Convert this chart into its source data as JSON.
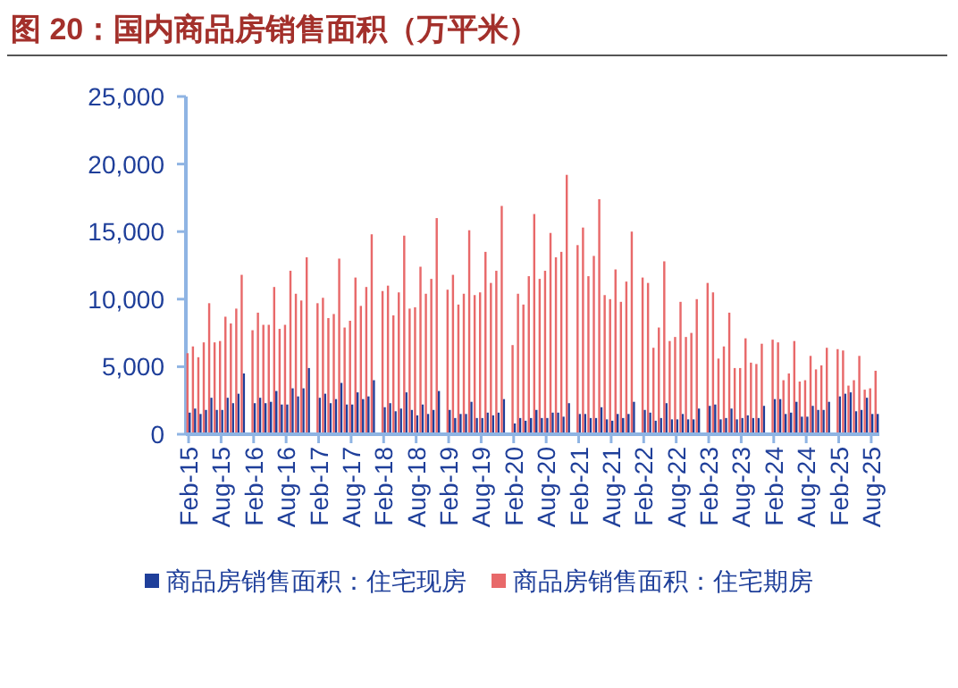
{
  "chart_data": {
    "type": "bar",
    "title": "图 20：国内商品房销售面积（万平米）",
    "categories": [
      "Feb-15",
      null,
      null,
      null,
      null,
      null,
      "Aug-15",
      null,
      null,
      null,
      null,
      null,
      "Feb-16",
      null,
      null,
      null,
      null,
      null,
      "Aug-16",
      null,
      null,
      null,
      null,
      null,
      "Feb-17",
      null,
      null,
      null,
      null,
      null,
      "Aug-17",
      null,
      null,
      null,
      null,
      null,
      "Feb-18",
      null,
      null,
      null,
      null,
      null,
      "Aug-18",
      null,
      null,
      null,
      null,
      null,
      "Feb-19",
      null,
      null,
      null,
      null,
      null,
      "Aug-19",
      null,
      null,
      null,
      null,
      null,
      "Feb-20",
      null,
      null,
      null,
      null,
      null,
      "Aug-20",
      null,
      null,
      null,
      null,
      null,
      "Feb-21",
      null,
      null,
      null,
      null,
      null,
      "Aug-21",
      null,
      null,
      null,
      null,
      null,
      "Feb-22",
      null,
      null,
      null,
      null,
      null,
      "Aug-22",
      null,
      null,
      null,
      null,
      null,
      "Feb-23",
      null,
      null,
      null,
      null,
      null,
      "Aug-23",
      null,
      null,
      null,
      null,
      null,
      "Feb-24",
      null,
      null,
      null,
      null,
      null,
      "Aug-24",
      null,
      null,
      null,
      null,
      null,
      "Feb-25",
      null,
      null,
      null,
      null,
      null,
      "Aug-25",
      null
    ],
    "series": [
      {
        "name": "商品房销售面积：住宅现房",
        "color": "#1f3f9a",
        "values": [
          1600,
          1900,
          1500,
          1800,
          2700,
          1800,
          1800,
          2700,
          2300,
          3000,
          4500,
          null,
          2300,
          2700,
          2300,
          2400,
          3200,
          2200,
          2200,
          3400,
          2800,
          3400,
          4900,
          null,
          2700,
          3000,
          2300,
          2600,
          3800,
          2200,
          2200,
          3100,
          2600,
          2800,
          4000,
          null,
          2000,
          2300,
          1700,
          1900,
          3100,
          1800,
          1400,
          2200,
          1500,
          1800,
          3200,
          null,
          1800,
          1200,
          1500,
          1500,
          2400,
          1200,
          1200,
          1600,
          1400,
          1600,
          2600,
          null,
          800,
          1200,
          1000,
          1200,
          1800,
          1200,
          1200,
          1600,
          1600,
          1300,
          2300,
          null,
          1500,
          1500,
          1200,
          1200,
          2000,
          1100,
          1000,
          1500,
          1200,
          1500,
          2400,
          null,
          1800,
          1600,
          1000,
          1200,
          2300,
          1100,
          1100,
          1500,
          1100,
          1100,
          1900,
          null,
          2100,
          2200,
          1100,
          1200,
          1900,
          1100,
          1200,
          1400,
          1200,
          1200,
          2100,
          null,
          2600,
          2600,
          1500,
          1600,
          2400,
          1300,
          1300,
          2100,
          1800,
          1800,
          2400,
          null,
          2800,
          3000,
          3100,
          1700,
          1800,
          2700,
          1500,
          1500
        ]
      },
      {
        "name": "商品房销售面积：住宅期房",
        "color": "#e8696a",
        "values": [
          6000,
          6500,
          5700,
          6800,
          9700,
          6800,
          6900,
          8700,
          8200,
          9300,
          11800,
          null,
          7700,
          9000,
          8100,
          8100,
          10900,
          7800,
          8100,
          12100,
          10400,
          9900,
          13100,
          null,
          9700,
          10100,
          8600,
          8900,
          13000,
          7900,
          8400,
          11600,
          9500,
          10900,
          14800,
          null,
          10600,
          11000,
          8800,
          10500,
          14700,
          9300,
          9400,
          12400,
          10400,
          11500,
          16000,
          null,
          10700,
          11800,
          9600,
          10400,
          15100,
          10300,
          10500,
          13500,
          11200,
          12100,
          16900,
          null,
          6600,
          10400,
          9600,
          11700,
          16300,
          11500,
          12100,
          14900,
          13100,
          13500,
          19200,
          null,
          14000,
          15300,
          11700,
          13200,
          17400,
          10300,
          10000,
          12200,
          9800,
          11300,
          15000,
          null,
          11600,
          11200,
          6400,
          7900,
          12800,
          6900,
          7200,
          9800,
          7200,
          7500,
          10000,
          null,
          11200,
          10500,
          5600,
          6500,
          9000,
          4900,
          4900,
          7100,
          5300,
          5200,
          6700,
          null,
          7000,
          6800,
          4000,
          4500,
          6900,
          3900,
          4000,
          5800,
          4800,
          5100,
          6400,
          null,
          6300,
          6200,
          3600,
          4000,
          5800,
          3300,
          3400,
          4700
        ]
      }
    ],
    "ylim": [
      0,
      25000
    ],
    "yticks": [
      0,
      {
        "value": 5000,
        "label": "5,000"
      },
      {
        "value": 10000,
        "label": "10,000"
      },
      {
        "value": 15000,
        "label": "15,000"
      },
      {
        "value": 20000,
        "label": "20,000"
      },
      {
        "value": 25000,
        "label": "25,000"
      }
    ],
    "legend": "bottom"
  }
}
